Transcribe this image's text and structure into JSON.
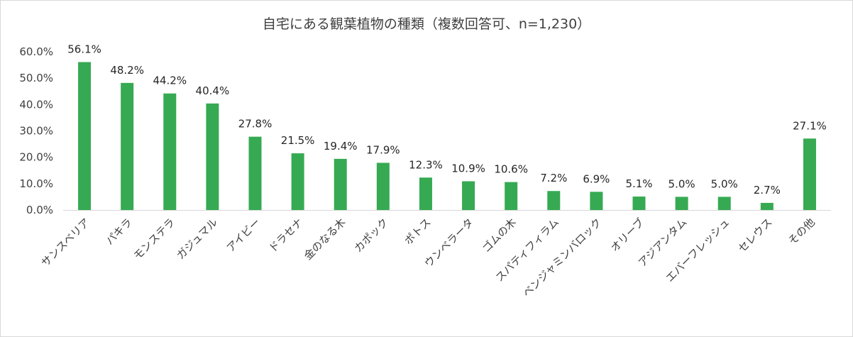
{
  "chart_data": {
    "type": "bar",
    "title": "自宅にある観葉植物の種類（複数回答可、n=1,230）",
    "categories": [
      "サンスベリア",
      "パキラ",
      "モンステラ",
      "ガジュマル",
      "アイビー",
      "ドラセナ",
      "金のなる木",
      "カポック",
      "ポトス",
      "ウンベラータ",
      "ゴムの木",
      "スパティフィラム",
      "ベンジャミンバロック",
      "オリーブ",
      "アジアンタム",
      "エバーフレッシュ",
      "セレウス",
      "その他"
    ],
    "values": [
      56.1,
      48.2,
      44.2,
      40.4,
      27.8,
      21.5,
      19.4,
      17.9,
      12.3,
      10.9,
      10.6,
      7.2,
      6.9,
      5.1,
      5.0,
      5.0,
      2.7,
      27.1
    ],
    "value_labels": [
      "56.1%",
      "48.2%",
      "44.2%",
      "40.4%",
      "27.8%",
      "21.5%",
      "19.4%",
      "17.9%",
      "12.3%",
      "10.9%",
      "10.6%",
      "7.2%",
      "6.9%",
      "5.1%",
      "5.0%",
      "5.0%",
      "2.7%",
      "27.1%"
    ],
    "y_ticks": [
      0,
      10,
      20,
      30,
      40,
      50,
      60
    ],
    "y_tick_labels": [
      "0.0%",
      "10.0%",
      "20.0%",
      "30.0%",
      "40.0%",
      "50.0%",
      "60.0%"
    ],
    "ylim": [
      0,
      60
    ],
    "xlabel": "",
    "ylabel": "",
    "grid": false,
    "legend": "none",
    "bar_color": "#36aa52"
  }
}
